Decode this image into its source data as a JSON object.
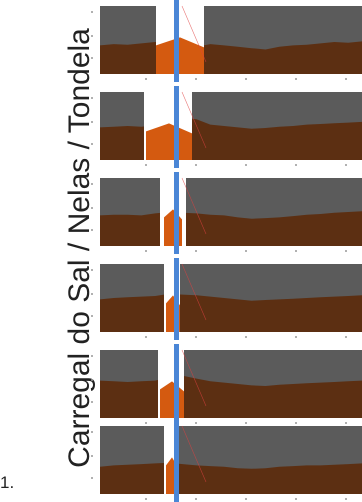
{
  "figure": {
    "list_number": "1.",
    "title": "Carregal do Sal / Nelas / Tondela"
  },
  "colors": {
    "sky": "#5b5b5b",
    "terrain": "#5c2f12",
    "highlight_terrain": "#d45a10",
    "gap": "#ffffff",
    "marker_line": "#4a86d6",
    "red_line": "#e04040"
  },
  "panels": [
    {
      "profile": [
        58,
        56,
        57,
        55,
        53,
        52,
        55,
        60,
        56,
        58,
        60,
        62,
        64,
        60,
        58,
        57,
        55,
        53,
        54,
        52
      ]
    },
    {
      "profile": [
        52,
        51,
        50,
        51,
        49,
        42,
        38,
        40,
        48,
        50,
        52,
        54,
        53,
        51,
        50,
        48,
        47,
        46,
        45,
        44
      ]
    },
    {
      "profile": [
        55,
        54,
        54,
        55,
        52,
        50,
        51,
        52,
        54,
        55,
        58,
        60,
        59,
        58,
        56,
        54,
        53,
        51,
        50,
        49
      ]
    },
    {
      "profile": [
        52,
        50,
        49,
        48,
        47,
        44,
        45,
        46,
        48,
        50,
        52,
        54,
        53,
        52,
        51,
        50,
        49,
        48,
        47,
        46
      ]
    },
    {
      "profile": [
        45,
        46,
        47,
        46,
        45,
        40,
        38,
        42,
        46,
        48,
        50,
        52,
        53,
        51,
        50,
        49,
        48,
        47,
        46,
        45
      ]
    },
    {
      "profile": [
        60,
        58,
        57,
        56,
        55,
        54,
        56,
        58,
        59,
        60,
        62,
        63,
        62,
        60,
        59,
        58,
        58,
        57,
        56,
        55
      ]
    }
  ]
}
